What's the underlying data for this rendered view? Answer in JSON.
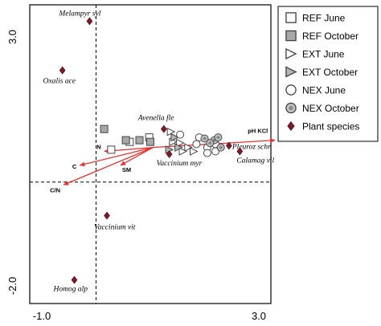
{
  "chart_data": {
    "type": "scatter",
    "title": "",
    "xlabel": "",
    "ylabel": "",
    "xlim": [
      -1.0,
      3.0
    ],
    "ylim": [
      -2.0,
      3.0
    ],
    "x_ticks": [
      "-1.0",
      "3.0"
    ],
    "y_ticks": [
      "3.0",
      "-2.0"
    ],
    "legend_position": "right",
    "colors": {
      "species": "#7a1c28",
      "arrow": "#e0332f",
      "sample_stroke": "#444444",
      "axis_dashed": "#000000"
    },
    "legend": [
      {
        "label": "REF June",
        "marker": "square-open"
      },
      {
        "label": "REF October",
        "marker": "square-filled"
      },
      {
        "label": "EXT June",
        "marker": "triangle-open"
      },
      {
        "label": "EXT October",
        "marker": "triangle-filled"
      },
      {
        "label": "NEX June",
        "marker": "circle-open"
      },
      {
        "label": "NEX October",
        "marker": "circle-filled"
      },
      {
        "label": "Plant species",
        "marker": "diamond"
      }
    ],
    "plant_species": [
      {
        "label": "Melampyr syl",
        "x": -0.12,
        "y": 2.88
      },
      {
        "label": "Oxalis ace",
        "x": -0.62,
        "y": 2.0
      },
      {
        "label": "Avenella fle",
        "x": 1.25,
        "y": 0.95
      },
      {
        "label": "Pleuroz schr",
        "x": 2.45,
        "y": 0.65
      },
      {
        "label": "Calamag vil",
        "x": 2.65,
        "y": 0.55
      },
      {
        "label": "Vaccinium myr",
        "x": 1.35,
        "y": 0.5
      },
      {
        "label": "Vaccinium vit",
        "x": 0.2,
        "y": -0.6
      },
      {
        "label": "Homog alp",
        "x": -0.4,
        "y": -1.75
      }
    ],
    "environmental_vectors": [
      {
        "label": "pH KCl",
        "x": 3.3,
        "y": 0.75
      },
      {
        "label": "N",
        "x": 0.15,
        "y": 0.55
      },
      {
        "label": "C",
        "x": -0.3,
        "y": 0.3
      },
      {
        "label": "SM",
        "x": 0.45,
        "y": 0.3
      },
      {
        "label": "C/N",
        "x": -0.6,
        "y": -0.05
      }
    ],
    "series": [
      {
        "name": "REF June",
        "marker": "square-open",
        "points": [
          [
            0.28,
            0.58
          ],
          [
            0.62,
            0.72
          ],
          [
            0.98,
            0.8
          ]
        ]
      },
      {
        "name": "REF October",
        "marker": "square-filled",
        "points": [
          [
            0.15,
            0.95
          ],
          [
            0.55,
            0.75
          ],
          [
            0.8,
            0.75
          ],
          [
            1.0,
            0.72
          ]
        ]
      },
      {
        "name": "EXT June",
        "marker": "triangle-open",
        "points": [
          [
            1.38,
            0.9
          ],
          [
            1.42,
            0.72
          ],
          [
            1.55,
            0.7
          ],
          [
            1.7,
            0.62
          ],
          [
            1.6,
            0.55
          ],
          [
            1.8,
            0.55
          ]
        ]
      },
      {
        "name": "EXT October",
        "marker": "triangle-filled",
        "points": [
          [
            1.45,
            0.8
          ],
          [
            1.35,
            0.58
          ],
          [
            1.52,
            0.62
          ]
        ]
      },
      {
        "name": "NEX June",
        "marker": "circle-open",
        "points": [
          [
            1.55,
            0.85
          ],
          [
            1.85,
            0.68
          ],
          [
            2.05,
            0.62
          ],
          [
            2.2,
            0.68
          ],
          [
            2.05,
            0.52
          ],
          [
            2.2,
            0.55
          ],
          [
            1.9,
            0.8
          ]
        ]
      },
      {
        "name": "NEX October",
        "marker": "circle-filled",
        "points": [
          [
            2.0,
            0.78
          ],
          [
            2.18,
            0.75
          ],
          [
            2.3,
            0.62
          ],
          [
            2.25,
            0.8
          ],
          [
            2.1,
            0.7
          ]
        ]
      }
    ]
  }
}
